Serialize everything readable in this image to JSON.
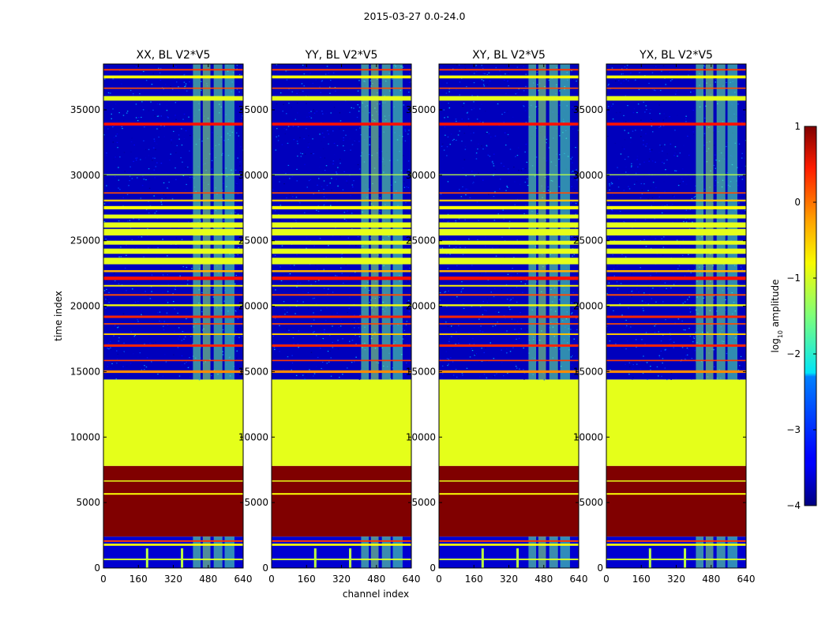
{
  "figure": {
    "suptitle": "2015-03-27 0.0-24.0"
  },
  "chart_data": {
    "type": "heatmap",
    "title": "2015-03-27 0.0-24.0",
    "xlabel": "channel index",
    "ylabel": "time index",
    "xlim": [
      0,
      640
    ],
    "ylim": [
      0,
      38500
    ],
    "x_ticks": [
      0,
      160,
      320,
      480,
      640
    ],
    "y_ticks": [
      0,
      5000,
      10000,
      15000,
      20000,
      25000,
      30000,
      35000
    ],
    "panels": [
      {
        "name": "XX",
        "title": "XX, BL V2*V5"
      },
      {
        "name": "YY",
        "title": "YY, BL V2*V5"
      },
      {
        "name": "XY",
        "title": "XY, BL V2*V5"
      },
      {
        "name": "YX",
        "title": "YX, BL V2*V5"
      }
    ],
    "colorbar": {
      "label": "log10 amplitude",
      "label_text": "log",
      "label_sub": "10",
      "label_rest": " amplitude",
      "range": [
        -4,
        1
      ],
      "ticks": [
        1,
        0,
        -1,
        -2,
        -3,
        -4
      ],
      "tick_labels": [
        "1",
        "0",
        "−1",
        "−2",
        "−3",
        "−4"
      ],
      "colormap": "jet"
    },
    "regions": [
      {
        "t0": 0,
        "t1": 2400,
        "kind": "low_band",
        "value": -3.6
      },
      {
        "t0": 2400,
        "t1": 7800,
        "kind": "solid",
        "value": 1.0
      },
      {
        "t0": 7800,
        "t1": 14400,
        "kind": "solid",
        "value": -1.0
      },
      {
        "t0": 14400,
        "t1": 38500,
        "kind": "noise_band",
        "value": -3.7
      }
    ],
    "stripes": [
      {
        "t": 600,
        "h": 120,
        "value": -1.1
      },
      {
        "t": 1700,
        "h": 160,
        "value": -0.9
      },
      {
        "t": 2000,
        "h": 120,
        "value": 0.1
      },
      {
        "t": 5600,
        "h": 120,
        "value": -0.9
      },
      {
        "t": 6600,
        "h": 90,
        "value": -1.0
      },
      {
        "t": 14900,
        "h": 200,
        "value": -0.3
      },
      {
        "t": 15800,
        "h": 100,
        "value": 0.1
      },
      {
        "t": 16900,
        "h": 180,
        "value": 0.2
      },
      {
        "t": 17800,
        "h": 120,
        "value": -0.6
      },
      {
        "t": 18600,
        "h": 100,
        "value": 0.0
      },
      {
        "t": 19100,
        "h": 180,
        "value": 0.2
      },
      {
        "t": 20000,
        "h": 140,
        "value": -0.9
      },
      {
        "t": 20800,
        "h": 120,
        "value": 0.0
      },
      {
        "t": 21500,
        "h": 120,
        "value": -0.8
      },
      {
        "t": 22000,
        "h": 260,
        "value": 0.3
      },
      {
        "t": 22600,
        "h": 150,
        "value": -0.5
      },
      {
        "t": 23200,
        "h": 500,
        "value": -1.0
      },
      {
        "t": 24000,
        "h": 400,
        "value": -1.0
      },
      {
        "t": 24700,
        "h": 300,
        "value": -1.0
      },
      {
        "t": 25400,
        "h": 500,
        "value": -1.0
      },
      {
        "t": 26000,
        "h": 400,
        "value": -1.0
      },
      {
        "t": 26700,
        "h": 300,
        "value": -1.0
      },
      {
        "t": 27400,
        "h": 250,
        "value": -0.9
      },
      {
        "t": 28000,
        "h": 140,
        "value": -0.6
      },
      {
        "t": 28600,
        "h": 100,
        "value": 0.0
      },
      {
        "t": 30000,
        "h": 80,
        "value": -1.2
      },
      {
        "t": 33800,
        "h": 220,
        "value": 0.3
      },
      {
        "t": 35700,
        "h": 350,
        "value": -1.0
      },
      {
        "t": 36600,
        "h": 100,
        "value": 0.0
      },
      {
        "t": 37400,
        "h": 220,
        "value": -0.9
      },
      {
        "t": 38000,
        "h": 120,
        "value": 0.1
      }
    ],
    "channel_blocks": [
      {
        "c0": 410,
        "c1": 445,
        "value": -1.6
      },
      {
        "c0": 455,
        "c1": 490,
        "value": -1.4
      },
      {
        "c0": 505,
        "c1": 545,
        "value": -1.6
      },
      {
        "c0": 555,
        "c1": 600,
        "value": -1.7
      }
    ],
    "channel_spikes": [
      200,
      360
    ]
  }
}
